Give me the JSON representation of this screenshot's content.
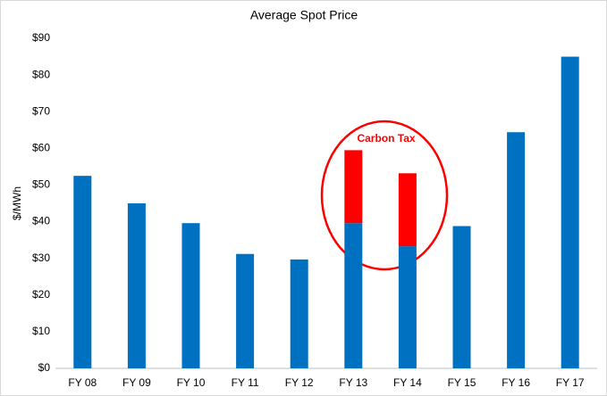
{
  "chart_data": {
    "type": "stacked-bar",
    "title": "Average Spot Price",
    "y_label": "$/MWh",
    "annotation": "Carbon Tax",
    "categories": [
      "FY 08",
      "FY 09",
      "FY 10",
      "FY 11",
      "FY 12",
      "FY 13",
      "FY 14",
      "FY 15",
      "FY 16",
      "FY 17"
    ],
    "series": [
      {
        "color": "#0070c0",
        "values": [
          52.5,
          45,
          39.6,
          31.2,
          29.7,
          39.6,
          33.3,
          38.8,
          64.4,
          85
        ]
      },
      {
        "color": "#ff0000",
        "values": [
          null,
          null,
          null,
          null,
          null,
          19.9,
          19.9,
          null,
          null,
          null
        ]
      }
    ],
    "ylim": [
      0,
      90
    ],
    "yticks": [
      {
        "value": 0,
        "label": "$0"
      },
      {
        "value": 10,
        "label": "$10"
      },
      {
        "value": 20,
        "label": "$20"
      },
      {
        "value": 30,
        "label": "$30"
      },
      {
        "value": 40,
        "label": "$40"
      },
      {
        "value": 50,
        "label": "$50"
      },
      {
        "value": 60,
        "label": "$60"
      },
      {
        "value": 70,
        "label": "$70"
      },
      {
        "value": 80,
        "label": "$80"
      },
      {
        "value": 90,
        "label": "$90"
      }
    ],
    "grid": false
  }
}
